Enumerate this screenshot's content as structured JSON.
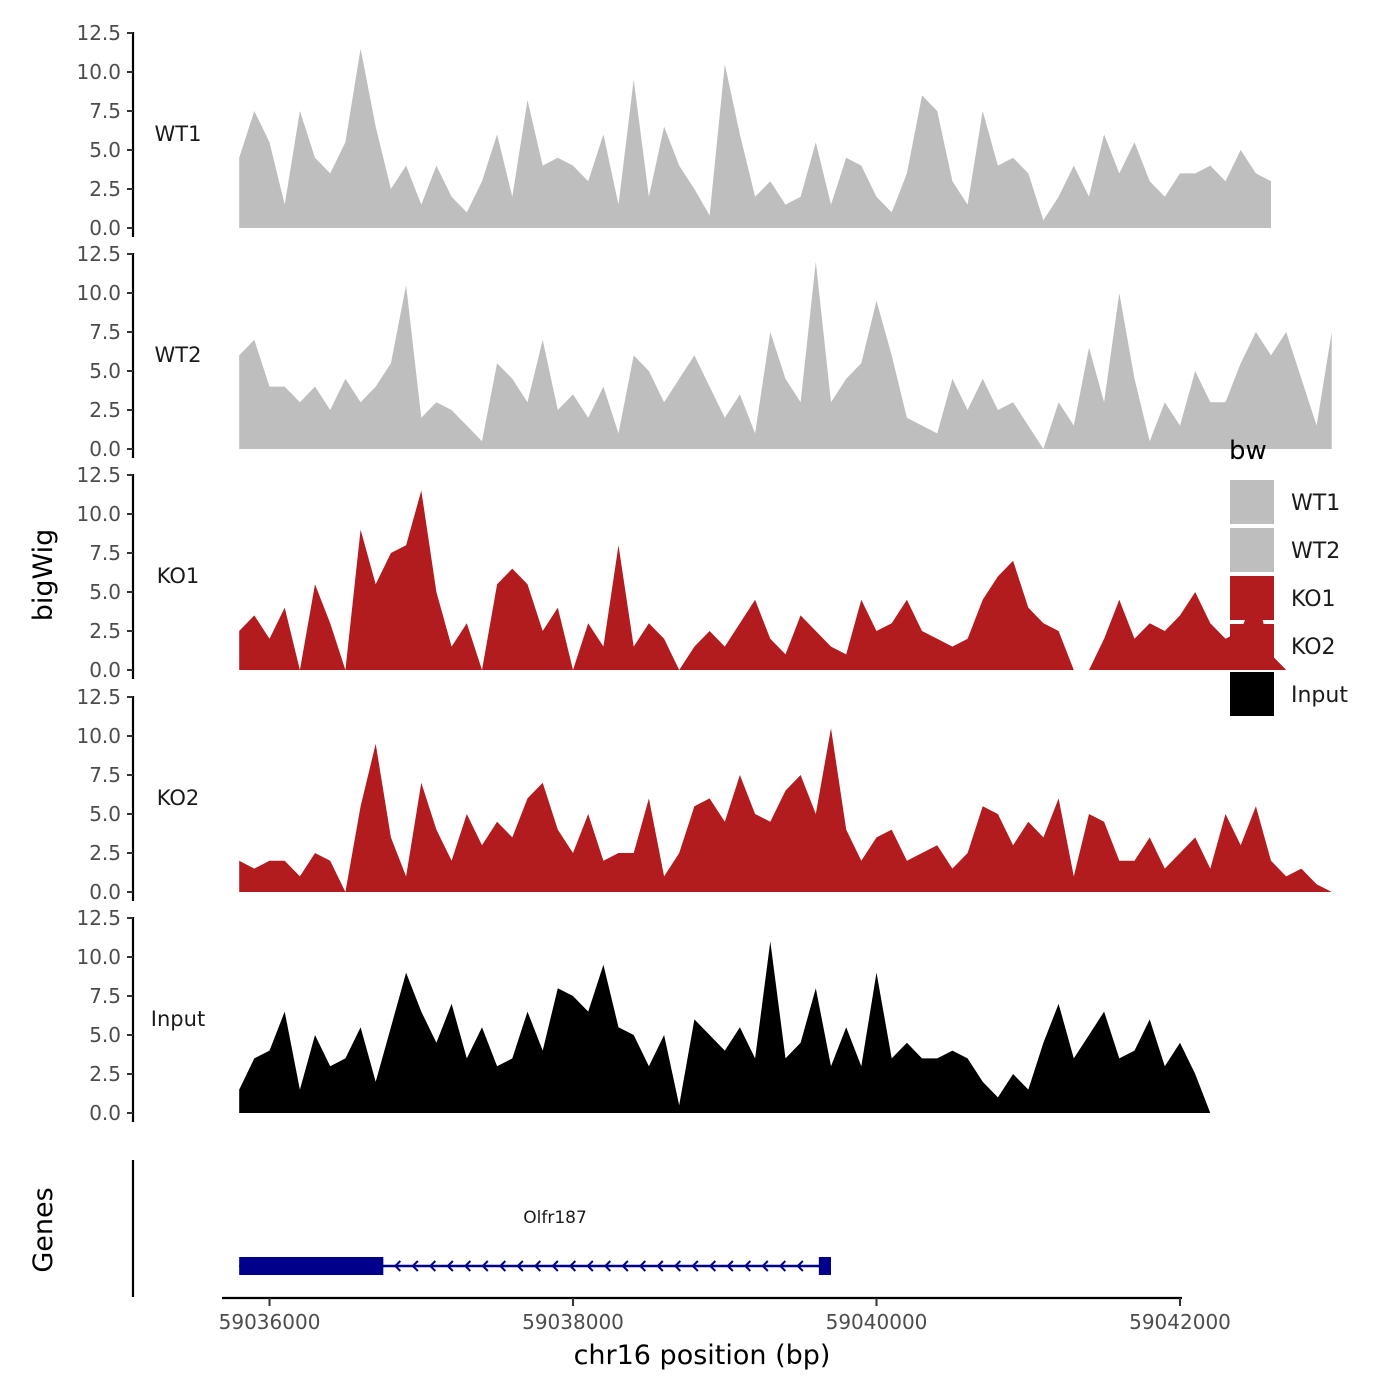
{
  "chart_data": {
    "type": "area",
    "title": "",
    "xlabel": "chr16 position (bp)",
    "ylabel": "bigWig",
    "gene_panel_label": "Genes",
    "xlim": [
      59035700,
      59042000
    ],
    "ylim": [
      0,
      12.5
    ],
    "x_ticks": [
      59036000,
      59038000,
      59040000,
      59042000
    ],
    "x_tick_labels": [
      "59036000",
      "59038000",
      "59040000",
      "59042000"
    ],
    "y_ticks": [
      0,
      2.5,
      5,
      7.5,
      10,
      12.5
    ],
    "y_tick_labels": [
      "0.0",
      "2.5",
      "5.0",
      "7.5",
      "10.0",
      "12.5"
    ],
    "x_start": 59035800,
    "x_step": 100,
    "legend": {
      "title": "bw",
      "position": "right",
      "entries": [
        {
          "name": "WT1",
          "color": "#bebebe"
        },
        {
          "name": "WT2",
          "color": "#bebebe"
        },
        {
          "name": "KO1",
          "color": "#b21c1f"
        },
        {
          "name": "KO2",
          "color": "#b21c1f"
        },
        {
          "name": "Input",
          "color": "#000000"
        }
      ]
    },
    "series": [
      {
        "name": "WT1",
        "color": "#bebebe",
        "values": [
          4.5,
          7.5,
          5.5,
          1.5,
          7.5,
          4.5,
          3.5,
          5.5,
          11.5,
          6.5,
          2.5,
          4.0,
          1.5,
          4.0,
          2.0,
          1.0,
          3.0,
          6.0,
          2.0,
          8.2,
          4.0,
          4.5,
          4.0,
          3.0,
          6.0,
          1.5,
          9.5,
          2.0,
          6.5,
          4.0,
          2.5,
          0.8,
          10.5,
          6.0,
          2.0,
          3.0,
          1.5,
          2.0,
          5.5,
          1.5,
          4.5,
          4.0,
          2.0,
          1.0,
          3.5,
          8.5,
          7.5,
          3.0,
          1.5,
          7.5,
          4.0,
          4.5,
          3.5,
          0.5,
          2.0,
          4.0,
          2.0,
          6.0,
          3.5,
          5.5,
          3.0,
          2.0,
          3.5,
          3.5,
          4.0,
          3.0,
          5.0,
          3.5,
          3.0
        ]
      },
      {
        "name": "WT2",
        "color": "#bebebe",
        "values": [
          6.0,
          7.0,
          4.0,
          4.0,
          3.0,
          4.0,
          2.5,
          4.5,
          3.0,
          4.0,
          5.5,
          10.5,
          2.0,
          3.0,
          2.5,
          1.5,
          0.5,
          5.5,
          4.5,
          3.0,
          7.0,
          2.5,
          3.5,
          2.0,
          4.0,
          1.0,
          6.0,
          5.0,
          3.0,
          4.5,
          6.0,
          4.0,
          2.0,
          3.5,
          1.0,
          7.5,
          4.5,
          3.0,
          12.0,
          3.0,
          4.5,
          5.5,
          9.5,
          6.0,
          2.0,
          1.5,
          1.0,
          4.5,
          2.5,
          4.5,
          2.5,
          3.0,
          1.5,
          0.0,
          3.0,
          1.5,
          6.5,
          3.0,
          10.0,
          4.5,
          0.5,
          3.0,
          1.5,
          5.0,
          3.0,
          3.0,
          5.5,
          7.5,
          6.0,
          7.5,
          4.5,
          1.5,
          7.5
        ]
      },
      {
        "name": "KO1",
        "color": "#b21c1f",
        "values": [
          2.5,
          3.5,
          2.0,
          4.0,
          0.0,
          5.5,
          3.0,
          0.0,
          9.0,
          5.5,
          7.5,
          8.0,
          11.5,
          5.0,
          1.5,
          3.0,
          0.0,
          5.5,
          6.5,
          5.5,
          2.5,
          4.0,
          0.0,
          3.0,
          1.5,
          8.0,
          1.5,
          3.0,
          2.0,
          0.0,
          1.5,
          2.5,
          1.5,
          3.0,
          4.5,
          2.0,
          1.0,
          3.5,
          2.5,
          1.5,
          1.0,
          4.5,
          2.5,
          3.0,
          4.5,
          2.5,
          2.0,
          1.5,
          2.0,
          4.5,
          6.0,
          7.0,
          4.0,
          3.0,
          2.5,
          0.0,
          0.0,
          2.0,
          4.5,
          2.0,
          3.0,
          2.5,
          3.5,
          5.0,
          3.0,
          2.0,
          2.5,
          5.0,
          1.0,
          0.0
        ]
      },
      {
        "name": "KO2",
        "color": "#b21c1f",
        "values": [
          2.0,
          1.5,
          2.0,
          2.0,
          1.0,
          2.5,
          2.0,
          0.0,
          5.5,
          9.5,
          3.5,
          1.0,
          7.0,
          4.0,
          2.0,
          5.0,
          3.0,
          4.5,
          3.5,
          6.0,
          7.0,
          4.0,
          2.5,
          5.0,
          2.0,
          2.5,
          2.5,
          6.0,
          1.0,
          2.5,
          5.5,
          6.0,
          4.5,
          7.5,
          5.0,
          4.5,
          6.5,
          7.5,
          5.0,
          10.5,
          4.0,
          2.0,
          3.5,
          4.0,
          2.0,
          2.5,
          3.0,
          1.5,
          2.5,
          5.5,
          5.0,
          3.0,
          4.5,
          3.5,
          6.0,
          1.0,
          5.0,
          4.5,
          2.0,
          2.0,
          3.5,
          1.5,
          2.5,
          3.5,
          1.5,
          5.0,
          3.0,
          5.5,
          2.0,
          1.0,
          1.5,
          0.5,
          0.0
        ]
      },
      {
        "name": "Input",
        "color": "#000000",
        "values": [
          1.5,
          3.5,
          4.0,
          6.5,
          1.5,
          5.0,
          3.0,
          3.5,
          5.5,
          2.0,
          5.5,
          9.0,
          6.5,
          4.5,
          7.0,
          3.5,
          5.5,
          3.0,
          3.5,
          6.5,
          4.0,
          8.0,
          7.5,
          6.5,
          9.5,
          5.5,
          5.0,
          3.0,
          5.0,
          0.5,
          6.0,
          5.0,
          4.0,
          5.5,
          3.5,
          11.0,
          3.5,
          4.5,
          8.0,
          3.0,
          5.5,
          3.0,
          9.0,
          3.5,
          4.5,
          3.5,
          3.5,
          4.0,
          3.5,
          2.0,
          1.0,
          2.5,
          1.5,
          4.5,
          7.0,
          3.5,
          5.0,
          6.5,
          3.5,
          4.0,
          6.0,
          3.0,
          4.5,
          2.5,
          0.0
        ]
      }
    ],
    "genes": [
      {
        "name": "Olfr187",
        "start": 59035800,
        "end": 59039700,
        "strand": "-",
        "exons": [
          [
            59035800,
            59036750
          ],
          [
            59039620,
            59039700
          ]
        ],
        "color": "#00008b"
      }
    ]
  }
}
